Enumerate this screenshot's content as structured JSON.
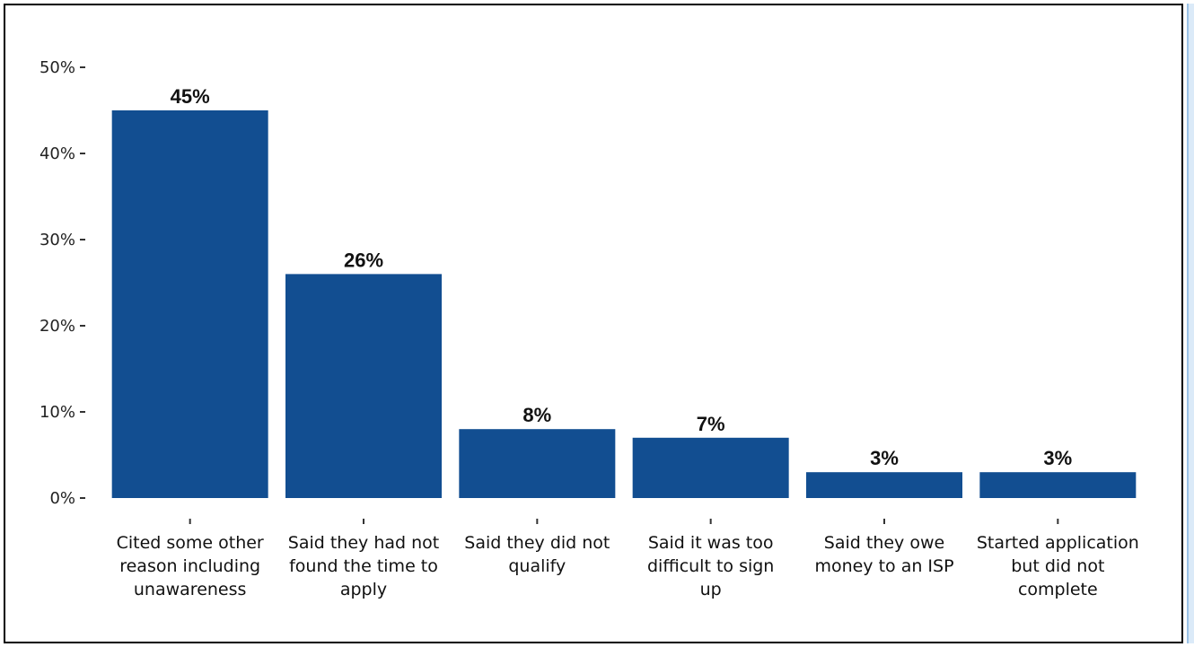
{
  "chart_data": {
    "type": "bar",
    "categories": [
      [
        "Cited some other",
        "reason including",
        "unawareness"
      ],
      [
        "Said they had not",
        "found the time to",
        "apply"
      ],
      [
        "Said they did not",
        "qualify"
      ],
      [
        "Said it was too",
        "difficult to sign",
        "up"
      ],
      [
        "Said they owe",
        "money to an ISP"
      ],
      [
        "Started application",
        "but did not",
        "complete"
      ]
    ],
    "values": [
      45,
      26,
      8,
      7,
      3,
      3
    ],
    "data_labels": [
      "45%",
      "26%",
      "8%",
      "7%",
      "3%",
      "3%"
    ],
    "yticks": [
      0,
      10,
      20,
      30,
      40,
      50
    ],
    "ytick_labels": [
      "0%",
      "10%",
      "20%",
      "30%",
      "40%",
      "50%"
    ],
    "ylim": [
      0,
      50
    ],
    "bar_color": "#124e91",
    "grid": false,
    "title": "",
    "xlabel": "",
    "ylabel": ""
  }
}
